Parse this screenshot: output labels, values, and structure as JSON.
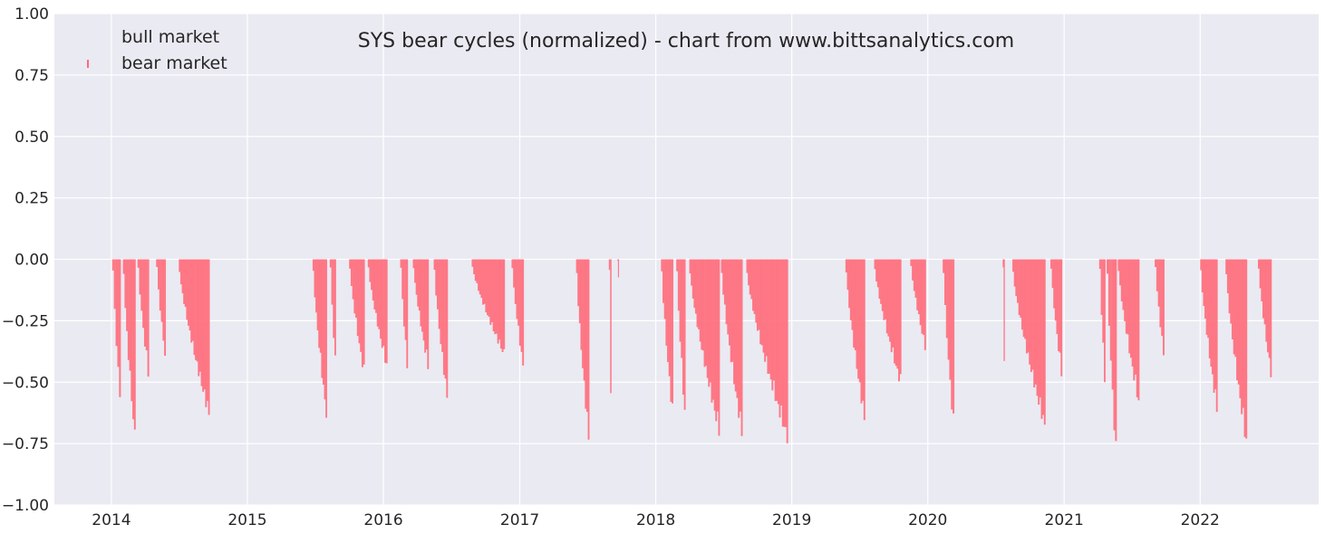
{
  "chart_data": {
    "type": "bar",
    "title": "SYS bear cycles (normalized)  - chart from www.bittsanalytics.com",
    "xlabel": "",
    "ylabel": "",
    "ylim": [
      -1.0,
      1.0
    ],
    "xlim": [
      "2013-08-01",
      "2022-11-15"
    ],
    "x_ticks": [
      "2014",
      "2015",
      "2016",
      "2017",
      "2018",
      "2019",
      "2020",
      "2021",
      "2022"
    ],
    "y_ticks": [
      "1.00",
      "0.75",
      "0.50",
      "0.25",
      "0.00",
      "−0.25",
      "−0.50",
      "−0.75",
      "−1.00"
    ],
    "grid": true,
    "legend_position": "top-left",
    "series": [
      {
        "name": "bull market",
        "color": "#e8e8ee",
        "values": []
      },
      {
        "name": "bear market",
        "color": "#ff6b7a",
        "values": [
          {
            "start": "2014-01-03",
            "end": "2014-01-24",
            "min": -0.58
          },
          {
            "start": "2014-02-01",
            "end": "2014-03-05",
            "min": -0.75
          },
          {
            "start": "2014-03-12",
            "end": "2014-04-10",
            "min": -0.48
          },
          {
            "start": "2014-05-01",
            "end": "2014-05-25",
            "min": -0.4
          },
          {
            "start": "2014-07-01",
            "end": "2014-09-20",
            "min": -0.65
          },
          {
            "start": "2015-06-25",
            "end": "2015-08-01",
            "min": -0.65
          },
          {
            "start": "2015-08-10",
            "end": "2015-08-25",
            "min": -0.43
          },
          {
            "start": "2015-10-01",
            "end": "2015-11-10",
            "min": -0.48
          },
          {
            "start": "2015-11-20",
            "end": "2016-01-10",
            "min": -0.45
          },
          {
            "start": "2016-02-15",
            "end": "2016-03-05",
            "min": -0.45
          },
          {
            "start": "2016-03-20",
            "end": "2016-04-30",
            "min": -0.45
          },
          {
            "start": "2016-05-15",
            "end": "2016-06-20",
            "min": -0.58
          },
          {
            "start": "2016-08-25",
            "end": "2016-11-20",
            "min": -0.4
          },
          {
            "start": "2016-12-10",
            "end": "2017-01-10",
            "min": -0.45
          },
          {
            "start": "2017-06-01",
            "end": "2017-07-05",
            "min": -0.75
          },
          {
            "start": "2017-08-28",
            "end": "2017-09-03",
            "min": -0.57
          },
          {
            "start": "2017-09-20",
            "end": "2017-09-24",
            "min": -0.08
          },
          {
            "start": "2018-01-15",
            "end": "2018-02-15",
            "min": -0.65
          },
          {
            "start": "2018-02-25",
            "end": "2018-03-20",
            "min": -0.65
          },
          {
            "start": "2018-04-01",
            "end": "2018-06-20",
            "min": -0.72
          },
          {
            "start": "2018-06-25",
            "end": "2018-08-20",
            "min": -0.73
          },
          {
            "start": "2018-09-01",
            "end": "2018-12-20",
            "min": -0.75
          },
          {
            "start": "2019-05-25",
            "end": "2019-07-15",
            "min": -0.67
          },
          {
            "start": "2019-08-10",
            "end": "2019-10-20",
            "min": -0.52
          },
          {
            "start": "2019-11-15",
            "end": "2019-12-25",
            "min": -0.37
          },
          {
            "start": "2020-02-10",
            "end": "2020-03-10",
            "min": -0.7
          },
          {
            "start": "2020-07-20",
            "end": "2020-07-25",
            "min": -0.42
          },
          {
            "start": "2020-08-15",
            "end": "2020-11-10",
            "min": -0.7
          },
          {
            "start": "2020-11-25",
            "end": "2020-12-25",
            "min": -0.48
          },
          {
            "start": "2021-04-05",
            "end": "2021-04-20",
            "min": -0.5
          },
          {
            "start": "2021-04-25",
            "end": "2021-05-20",
            "min": -0.82
          },
          {
            "start": "2021-05-25",
            "end": "2021-07-20",
            "min": -0.6
          },
          {
            "start": "2021-09-01",
            "end": "2021-09-25",
            "min": -0.4
          },
          {
            "start": "2022-01-01",
            "end": "2022-02-15",
            "min": -0.63
          },
          {
            "start": "2022-03-10",
            "end": "2022-05-05",
            "min": -0.77
          },
          {
            "start": "2022-06-05",
            "end": "2022-07-10",
            "min": -0.48
          }
        ]
      }
    ]
  }
}
